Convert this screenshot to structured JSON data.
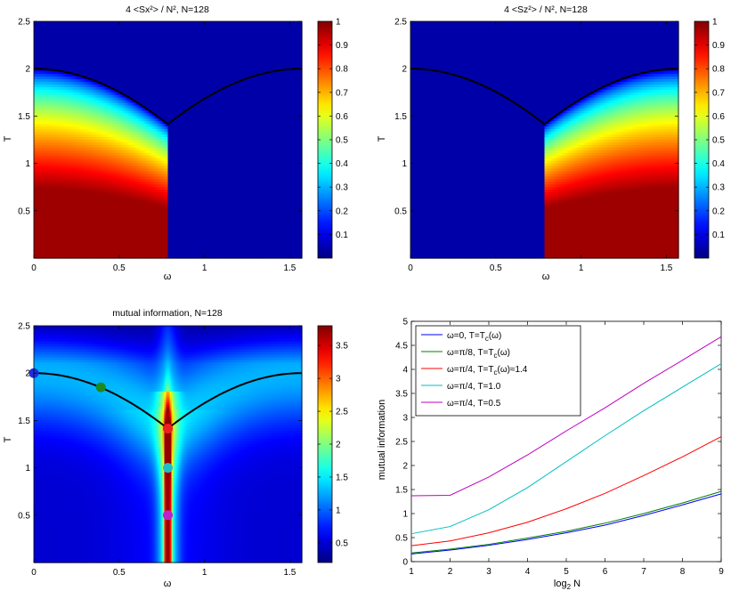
{
  "chart_data": [
    {
      "type": "heatmap",
      "title": "4 <Sx²> / N², N=128",
      "xlabel": "ω",
      "ylabel": "T",
      "xlim": [
        0,
        1.5708
      ],
      "ylim": [
        0,
        2.5
      ],
      "xticks": [
        0,
        0.5,
        1,
        1.5
      ],
      "yticks": [
        0.5,
        1,
        1.5,
        2,
        2.5
      ],
      "colorbar": {
        "min": 0,
        "max": 1,
        "ticks": [
          0.1,
          0.2,
          0.3,
          0.4,
          0.5,
          0.6,
          0.7,
          0.8,
          0.9,
          1
        ]
      },
      "colormap": "jet",
      "boundary_curve": "T_c(ω)"
    },
    {
      "type": "heatmap",
      "title": "4 <Sz²> / N², N=128",
      "xlabel": "ω",
      "ylabel": "T",
      "xlim": [
        0,
        1.5708
      ],
      "ylim": [
        0,
        2.5
      ],
      "xticks": [
        0,
        0.5,
        1,
        1.5
      ],
      "yticks": [
        0.5,
        1,
        1.5,
        2,
        2.5
      ],
      "colorbar": {
        "min": 0,
        "max": 1,
        "ticks": [
          0.1,
          0.2,
          0.3,
          0.4,
          0.5,
          0.6,
          0.7,
          0.8,
          0.9,
          1
        ]
      },
      "colormap": "jet",
      "boundary_curve": "T_c(ω)"
    },
    {
      "type": "heatmap",
      "title": "mutual information, N=128",
      "xlabel": "ω",
      "ylabel": "T",
      "xlim": [
        0,
        1.5708
      ],
      "ylim": [
        0,
        2.5
      ],
      "xticks": [
        0,
        0.5,
        1,
        1.5
      ],
      "yticks": [
        0.5,
        1,
        1.5,
        2,
        2.5
      ],
      "colorbar": {
        "min": 0.2,
        "max": 3.8,
        "ticks": [
          0.5,
          1,
          1.5,
          2,
          2.5,
          3,
          3.5
        ]
      },
      "colormap": "jet",
      "boundary_curve": "T_c(ω)",
      "markers": [
        {
          "x": 0,
          "y": 2.0,
          "color": "#1f2fe0"
        },
        {
          "x": 0.3927,
          "y": 1.85,
          "color": "#1e8a1e"
        },
        {
          "x": 0.7854,
          "y": 1.414,
          "color": "#ee2020"
        },
        {
          "x": 0.7854,
          "y": 1.0,
          "color": "#22bbcc"
        },
        {
          "x": 0.7854,
          "y": 0.5,
          "color": "#c020c8"
        }
      ]
    },
    {
      "type": "line",
      "title": "",
      "xlabel": "log₂ N",
      "ylabel": "mutual information",
      "xlim": [
        1,
        9
      ],
      "ylim": [
        0,
        5
      ],
      "xticks": [
        1,
        2,
        3,
        4,
        5,
        6,
        7,
        8,
        9
      ],
      "yticks": [
        0,
        0.5,
        1,
        1.5,
        2,
        2.5,
        3,
        3.5,
        4,
        4.5,
        5
      ],
      "legend_position": "top-left",
      "x": [
        1,
        2,
        3,
        4,
        5,
        6,
        7,
        8,
        9
      ],
      "series": [
        {
          "name": "ω=0, T=T_c(ω)",
          "legend": [
            "ω=0, T=T",
            "c",
            "(ω)"
          ],
          "color": "#0000ff",
          "values": [
            0.16,
            0.24,
            0.34,
            0.46,
            0.6,
            0.76,
            0.96,
            1.18,
            1.41
          ]
        },
        {
          "name": "ω=π/8, T=T_c(ω)",
          "legend": [
            "ω=π/8, T=T",
            "c",
            "(ω)"
          ],
          "color": "#008000",
          "values": [
            0.18,
            0.26,
            0.36,
            0.49,
            0.63,
            0.8,
            1.0,
            1.22,
            1.46
          ]
        },
        {
          "name": "ω=π/4, T=T_c(ω)≈1.4",
          "legend": [
            "ω=π/4, T=T",
            "c",
            "(ω)≈1.4"
          ],
          "color": "#ff0000",
          "values": [
            0.33,
            0.43,
            0.6,
            0.82,
            1.1,
            1.42,
            1.79,
            2.18,
            2.6
          ]
        },
        {
          "name": "ω=π/4, T=1.0",
          "legend": [
            "ω=π/4, T=1.0",
            "",
            ""
          ],
          "color": "#00bfbf",
          "values": [
            0.58,
            0.73,
            1.08,
            1.54,
            2.08,
            2.62,
            3.14,
            3.63,
            4.12
          ]
        },
        {
          "name": "ω=π/4, T=0.5",
          "legend": [
            "ω=π/4, T=0.5",
            "",
            ""
          ],
          "color": "#bf00bf",
          "values": [
            1.37,
            1.38,
            1.76,
            2.22,
            2.72,
            3.2,
            3.71,
            4.19,
            4.68
          ]
        }
      ]
    }
  ]
}
